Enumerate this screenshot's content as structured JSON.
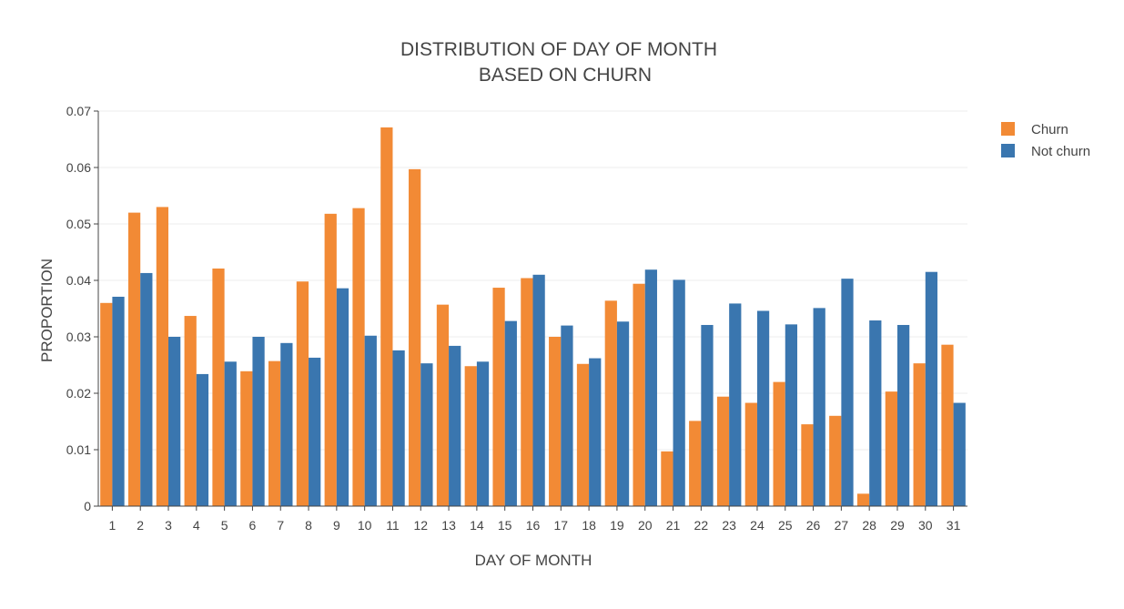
{
  "chart_data": {
    "type": "bar",
    "title": [
      "DISTRIBUTION OF DAY OF MONTH",
      "BASED ON CHURN"
    ],
    "xlabel": "DAY OF MONTH",
    "ylabel": "PROPORTION",
    "ylim": [
      0,
      0.07
    ],
    "yticks": [
      "0",
      "0.01",
      "0.02",
      "0.03",
      "0.04",
      "0.05",
      "0.06",
      "0.07"
    ],
    "grid": true,
    "legend_position": "top-right",
    "categories": [
      "1",
      "2",
      "3",
      "4",
      "5",
      "6",
      "7",
      "8",
      "9",
      "10",
      "11",
      "12",
      "13",
      "14",
      "15",
      "16",
      "17",
      "18",
      "19",
      "20",
      "21",
      "22",
      "23",
      "24",
      "25",
      "26",
      "27",
      "28",
      "29",
      "30",
      "31"
    ],
    "series": [
      {
        "name": "Churn",
        "color": "#f28a35",
        "values": [
          0.036,
          0.052,
          0.053,
          0.0337,
          0.0421,
          0.0239,
          0.0257,
          0.0398,
          0.0518,
          0.0528,
          0.0671,
          0.0597,
          0.0357,
          0.0248,
          0.0387,
          0.0404,
          0.03,
          0.0252,
          0.0364,
          0.0394,
          0.0097,
          0.0151,
          0.0194,
          0.0183,
          0.022,
          0.0145,
          0.016,
          0.0022,
          0.0203,
          0.0253,
          0.0286
        ]
      },
      {
        "name": "Not churn",
        "color": "#3a76af",
        "values": [
          0.0371,
          0.0413,
          0.03,
          0.0234,
          0.0256,
          0.03,
          0.0289,
          0.0263,
          0.0386,
          0.0302,
          0.0276,
          0.0253,
          0.0284,
          0.0256,
          0.0328,
          0.041,
          0.032,
          0.0262,
          0.0327,
          0.0419,
          0.0401,
          0.0321,
          0.0359,
          0.0346,
          0.0322,
          0.0351,
          0.0403,
          0.0329,
          0.0321,
          0.0415,
          0.0183
        ]
      }
    ]
  }
}
